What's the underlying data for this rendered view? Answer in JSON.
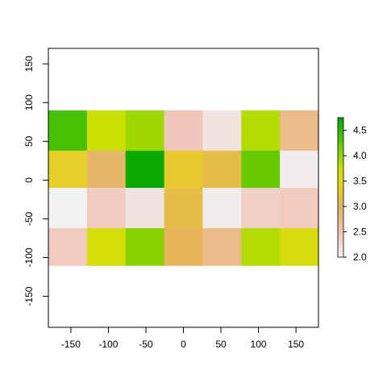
{
  "chart_data": {
    "type": "heatmap",
    "title": "",
    "xlabel": "",
    "ylabel": "",
    "xlim": [
      -180,
      180
    ],
    "ylim": [
      -190,
      170
    ],
    "x_ticks": [
      -150,
      -100,
      -50,
      0,
      50,
      100,
      150
    ],
    "y_ticks": [
      -150,
      -100,
      -50,
      0,
      50,
      100,
      150
    ],
    "x_tick_labels": [
      "-150",
      "-100",
      "-50",
      "0",
      "50",
      "100",
      "150"
    ],
    "y_tick_labels": [
      "-150",
      "-100",
      "-50",
      "0",
      "50",
      "100",
      "150"
    ],
    "x_edges": [
      -180,
      -128.57,
      -77.14,
      -25.71,
      25.71,
      77.14,
      128.57,
      180
    ],
    "y_edges": [
      90,
      38,
      -10,
      -62,
      -110
    ],
    "rows": [
      [
        4.35,
        3.75,
        3.95,
        2.45,
        2.15,
        3.85,
        2.75
      ],
      [
        3.35,
        2.95,
        4.7,
        3.3,
        3.15,
        4.2,
        2.05
      ],
      [
        2.0,
        2.4,
        2.15,
        3.15,
        2.05,
        2.35,
        2.4
      ],
      [
        2.4,
        3.65,
        4.05,
        3.05,
        2.75,
        3.85,
        3.6
      ]
    ],
    "zlim": [
      2.0,
      4.75
    ],
    "legend": {
      "position": "right",
      "ticks": [
        2.0,
        2.5,
        3.0,
        3.5,
        4.0,
        4.5
      ],
      "tick_labels": [
        "2.0",
        "2.5",
        "3.0",
        "3.5",
        "4.0",
        "4.5"
      ]
    },
    "color_stops": [
      {
        "v": 0.0,
        "c": "#f2f2f2"
      },
      {
        "v": 0.18,
        "c": "#efc2b3"
      },
      {
        "v": 0.38,
        "c": "#e6b35a"
      },
      {
        "v": 0.52,
        "c": "#e6d61a"
      },
      {
        "v": 0.64,
        "c": "#c8e000"
      },
      {
        "v": 0.82,
        "c": "#5cc800"
      },
      {
        "v": 1.0,
        "c": "#00a600"
      }
    ]
  }
}
